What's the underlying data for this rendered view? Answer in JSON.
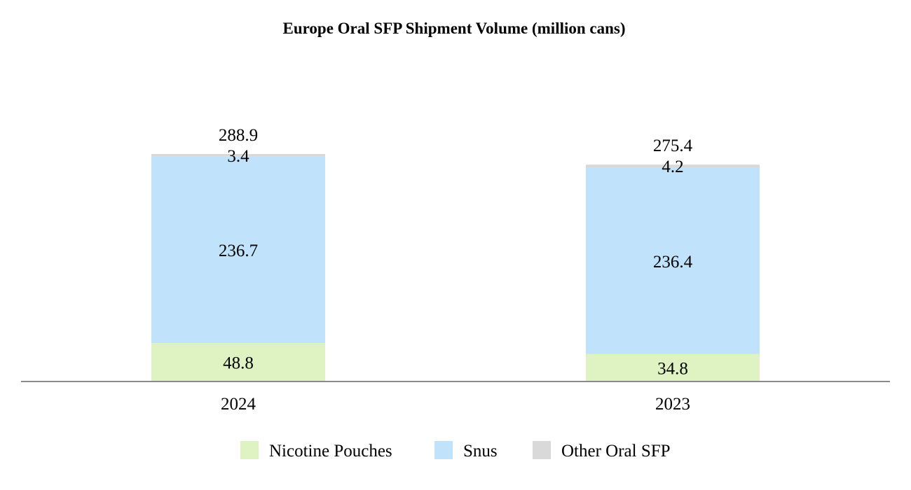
{
  "chart_data": {
    "type": "bar",
    "stacked": true,
    "title": "Europe Oral SFP Shipment Volume (million cans)",
    "xlabel": "",
    "ylabel": "",
    "grid": false,
    "legend_position": "bottom-center",
    "categories": [
      "2024",
      "2023"
    ],
    "series": [
      {
        "name": "Nicotine Pouches",
        "values": [
          48.8,
          34.8
        ],
        "color": "#dff2c1"
      },
      {
        "name": "Snus",
        "values": [
          236.7,
          236.4
        ],
        "color": "#c0e3fb"
      },
      {
        "name": "Other Oral SFP",
        "values": [
          3.4,
          4.2
        ],
        "color": "#d9d9d9"
      }
    ],
    "value_labels": [
      [
        "48.8",
        "34.8"
      ],
      [
        "236.7",
        "236.4"
      ],
      [
        "3.4",
        "4.2"
      ]
    ],
    "totals": [
      "288.9",
      "275.4"
    ],
    "ylim": [
      0,
      380
    ]
  },
  "colors": {
    "axis": "#8a8a8a",
    "text": "#000000"
  }
}
